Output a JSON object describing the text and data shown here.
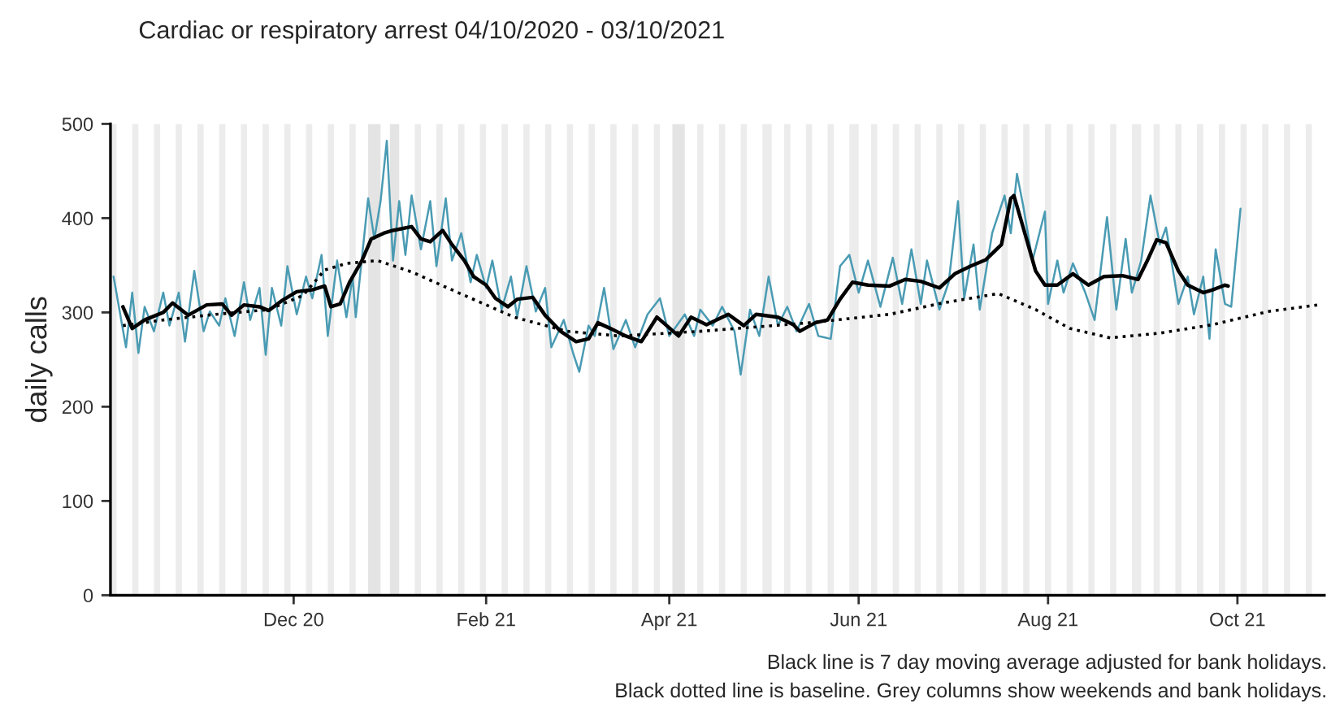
{
  "chart_data": {
    "type": "line",
    "title": "Cardiac or respiratory arrest 04/10/2020 - 03/10/2021",
    "ylabel": "daily calls",
    "annotations": [
      "Black line is 7 day moving average adjusted for bank holidays.",
      "Black dotted line is baseline. Grey columns show weekends and bank holidays."
    ],
    "xlim": [
      "2020-10-03",
      "2021-10-29"
    ],
    "xticks": [
      {
        "value": "2020-12-01",
        "label": "Dec 20"
      },
      {
        "value": "2021-02-01",
        "label": "Feb 21"
      },
      {
        "value": "2021-04-01",
        "label": "Apr 21"
      },
      {
        "value": "2021-06-01",
        "label": "Jun 21"
      },
      {
        "value": "2021-08-01",
        "label": "Aug 21"
      },
      {
        "value": "2021-10-01",
        "label": "Oct 21"
      }
    ],
    "ylim": [
      0,
      500
    ],
    "yticks": [
      0,
      100,
      200,
      300,
      400,
      500
    ],
    "grid": false,
    "legend": false,
    "series": [
      {
        "color": "#4a9bb3",
        "line_style": "solid",
        "x": [
          "2020-10-04",
          "2020-10-08",
          "2020-10-10",
          "2020-10-12",
          "2020-10-14",
          "2020-10-17",
          "2020-10-20",
          "2020-10-22",
          "2020-10-25",
          "2020-10-27",
          "2020-10-30",
          "2020-11-02",
          "2020-11-04",
          "2020-11-07",
          "2020-11-09",
          "2020-11-12",
          "2020-11-15",
          "2020-11-17",
          "2020-11-20",
          "2020-11-22",
          "2020-11-24",
          "2020-11-27",
          "2020-11-29",
          "2020-12-02",
          "2020-12-05",
          "2020-12-07",
          "2020-12-10",
          "2020-12-12",
          "2020-12-15",
          "2020-12-18",
          "2020-12-20",
          "2020-12-21",
          "2020-12-25",
          "2020-12-27",
          "2020-12-29",
          "2020-12-31",
          "2021-01-02",
          "2021-01-04",
          "2021-01-06",
          "2021-01-08",
          "2021-01-11",
          "2021-01-14",
          "2021-01-16",
          "2021-01-19",
          "2021-01-21",
          "2021-01-24",
          "2021-01-27",
          "2021-01-29",
          "2021-02-01",
          "2021-02-03",
          "2021-02-06",
          "2021-02-09",
          "2021-02-11",
          "2021-02-14",
          "2021-02-17",
          "2021-02-20",
          "2021-02-22",
          "2021-02-26",
          "2021-03-01",
          "2021-03-03",
          "2021-03-06",
          "2021-03-08",
          "2021-03-11",
          "2021-03-14",
          "2021-03-18",
          "2021-03-21",
          "2021-03-25",
          "2021-03-29",
          "2021-04-01",
          "2021-04-06",
          "2021-04-09",
          "2021-04-11",
          "2021-04-15",
          "2021-04-18",
          "2021-04-22",
          "2021-04-24",
          "2021-04-27",
          "2021-04-30",
          "2021-05-03",
          "2021-05-06",
          "2021-05-09",
          "2021-05-12",
          "2021-05-16",
          "2021-05-19",
          "2021-05-23",
          "2021-05-26",
          "2021-05-29",
          "2021-06-01",
          "2021-06-04",
          "2021-06-08",
          "2021-06-12",
          "2021-06-15",
          "2021-06-18",
          "2021-06-21",
          "2021-06-23",
          "2021-06-27",
          "2021-06-30",
          "2021-07-03",
          "2021-07-05",
          "2021-07-08",
          "2021-07-10",
          "2021-07-14",
          "2021-07-18",
          "2021-07-20",
          "2021-07-22",
          "2021-07-24",
          "2021-07-27",
          "2021-07-31",
          "2021-08-01",
          "2021-08-04",
          "2021-08-06",
          "2021-08-09",
          "2021-08-13",
          "2021-08-16",
          "2021-08-20",
          "2021-08-23",
          "2021-08-26",
          "2021-08-28",
          "2021-08-31",
          "2021-09-03",
          "2021-09-06",
          "2021-09-08",
          "2021-09-12",
          "2021-09-15",
          "2021-09-17",
          "2021-09-20",
          "2021-09-22",
          "2021-09-24",
          "2021-09-27",
          "2021-09-29",
          "2021-10-02"
        ],
        "values": [
          338,
          263,
          321,
          257,
          306,
          280,
          321,
          286,
          321,
          269,
          344,
          280,
          301,
          286,
          315,
          275,
          332,
          292,
          326,
          255,
          326,
          286,
          349,
          298,
          338,
          315,
          361,
          275,
          355,
          295,
          338,
          295,
          421,
          378,
          418,
          482,
          355,
          418,
          361,
          424,
          367,
          418,
          349,
          421,
          355,
          384,
          332,
          361,
          326,
          355,
          303,
          338,
          295,
          349,
          301,
          326,
          263,
          292,
          257,
          237,
          286,
          275,
          326,
          261,
          292,
          263,
          298,
          315,
          275,
          298,
          275,
          303,
          286,
          306,
          280,
          234,
          303,
          275,
          338,
          286,
          306,
          280,
          309,
          275,
          272,
          349,
          361,
          321,
          355,
          306,
          358,
          309,
          367,
          309,
          355,
          303,
          332,
          418,
          315,
          372,
          303,
          384,
          424,
          384,
          447,
          413,
          355,
          407,
          309,
          355,
          321,
          352,
          321,
          292,
          401,
          303,
          378,
          321,
          355,
          424,
          372,
          390,
          309,
          338,
          298,
          338,
          272,
          367,
          309,
          306,
          410
        ]
      },
      {
        "color": "#000000",
        "line_style": "solid",
        "x": [
          "2020-10-07",
          "2020-10-10",
          "2020-10-14",
          "2020-10-20",
          "2020-10-23",
          "2020-10-28",
          "2020-11-03",
          "2020-11-08",
          "2020-11-11",
          "2020-11-15",
          "2020-11-20",
          "2020-11-23",
          "2020-11-27",
          "2020-12-02",
          "2020-12-07",
          "2020-12-11",
          "2020-12-13",
          "2020-12-16",
          "2020-12-19",
          "2020-12-23",
          "2020-12-26",
          "2020-12-30",
          "2021-01-02",
          "2021-01-08",
          "2021-01-11",
          "2021-01-14",
          "2021-01-18",
          "2021-01-21",
          "2021-01-25",
          "2021-01-28",
          "2021-02-01",
          "2021-02-04",
          "2021-02-08",
          "2021-02-11",
          "2021-02-16",
          "2021-02-20",
          "2021-02-25",
          "2021-03-02",
          "2021-03-06",
          "2021-03-09",
          "2021-03-13",
          "2021-03-18",
          "2021-03-23",
          "2021-03-28",
          "2021-04-04",
          "2021-04-08",
          "2021-04-13",
          "2021-04-20",
          "2021-04-25",
          "2021-04-29",
          "2021-05-06",
          "2021-05-11",
          "2021-05-13",
          "2021-05-18",
          "2021-05-22",
          "2021-05-26",
          "2021-05-30",
          "2021-06-04",
          "2021-06-11",
          "2021-06-16",
          "2021-06-21",
          "2021-06-27",
          "2021-07-02",
          "2021-07-07",
          "2021-07-12",
          "2021-07-17",
          "2021-07-20",
          "2021-07-21",
          "2021-07-24",
          "2021-07-28",
          "2021-07-31",
          "2021-08-04",
          "2021-08-09",
          "2021-08-14",
          "2021-08-19",
          "2021-08-25",
          "2021-08-30",
          "2021-09-02",
          "2021-09-05",
          "2021-09-08",
          "2021-09-12",
          "2021-09-15",
          "2021-09-20",
          "2021-09-23",
          "2021-09-27",
          "2021-09-28"
        ],
        "values": [
          306,
          283,
          292,
          300,
          310,
          297,
          308,
          309,
          297,
          308,
          306,
          302,
          312,
          322,
          324,
          328,
          306,
          309,
          332,
          355,
          378,
          384,
          387,
          391,
          378,
          375,
          387,
          372,
          355,
          338,
          329,
          315,
          306,
          314,
          316,
          297,
          280,
          269,
          272,
          289,
          283,
          275,
          269,
          295,
          275,
          295,
          287,
          298,
          286,
          298,
          295,
          287,
          280,
          289,
          292,
          314,
          332,
          329,
          328,
          335,
          333,
          326,
          341,
          349,
          356,
          372,
          421,
          424,
          390,
          344,
          329,
          329,
          341,
          329,
          338,
          339,
          335,
          355,
          377,
          374,
          344,
          329,
          321,
          324,
          329,
          328
        ]
      },
      {
        "color": "#000000",
        "line_style": "dotted",
        "x": [
          "2020-10-07",
          "2020-10-20",
          "2020-11-06",
          "2020-11-23",
          "2020-12-04",
          "2020-12-11",
          "2020-12-18",
          "2020-12-28",
          "2021-01-08",
          "2021-01-23",
          "2021-02-10",
          "2021-02-27",
          "2021-03-16",
          "2021-04-11",
          "2021-05-16",
          "2021-06-11",
          "2021-06-28",
          "2021-07-16",
          "2021-07-28",
          "2021-08-08",
          "2021-08-21",
          "2021-09-06",
          "2021-09-23",
          "2021-10-11",
          "2021-10-27"
        ],
        "values": [
          286,
          292,
          298,
          303,
          318,
          345,
          352,
          355,
          343,
          321,
          295,
          280,
          275,
          280,
          289,
          298,
          310,
          320,
          303,
          283,
          273,
          278,
          287,
          301,
          308
        ]
      }
    ],
    "bands": [
      {
        "axis": "x",
        "from": "2020-10-03",
        "to": "2020-10-05",
        "color": "#ececec"
      },
      {
        "axis": "x",
        "from": "2020-10-10",
        "to": "2020-10-12",
        "color": "#ececec"
      },
      {
        "axis": "x",
        "from": "2020-10-17",
        "to": "2020-10-19",
        "color": "#ececec"
      },
      {
        "axis": "x",
        "from": "2020-10-24",
        "to": "2020-10-26",
        "color": "#ececec"
      },
      {
        "axis": "x",
        "from": "2020-10-31",
        "to": "2020-11-02",
        "color": "#ececec"
      },
      {
        "axis": "x",
        "from": "2020-11-07",
        "to": "2020-11-09",
        "color": "#ececec"
      },
      {
        "axis": "x",
        "from": "2020-11-14",
        "to": "2020-11-16",
        "color": "#ececec"
      },
      {
        "axis": "x",
        "from": "2020-11-21",
        "to": "2020-11-23",
        "color": "#ececec"
      },
      {
        "axis": "x",
        "from": "2020-11-28",
        "to": "2020-11-30",
        "color": "#ececec"
      },
      {
        "axis": "x",
        "from": "2020-12-05",
        "to": "2020-12-07",
        "color": "#ececec"
      },
      {
        "axis": "x",
        "from": "2020-12-12",
        "to": "2020-12-14",
        "color": "#ececec"
      },
      {
        "axis": "x",
        "from": "2020-12-19",
        "to": "2020-12-21",
        "color": "#ececec"
      },
      {
        "axis": "x",
        "from": "2020-12-25",
        "to": "2020-12-29",
        "color": "#e4e4e4"
      },
      {
        "axis": "x",
        "from": "2021-01-01",
        "to": "2021-01-04",
        "color": "#e4e4e4"
      },
      {
        "axis": "x",
        "from": "2021-01-09",
        "to": "2021-01-11",
        "color": "#ececec"
      },
      {
        "axis": "x",
        "from": "2021-01-16",
        "to": "2021-01-18",
        "color": "#ececec"
      },
      {
        "axis": "x",
        "from": "2021-01-23",
        "to": "2021-01-25",
        "color": "#ececec"
      },
      {
        "axis": "x",
        "from": "2021-01-30",
        "to": "2021-02-01",
        "color": "#ececec"
      },
      {
        "axis": "x",
        "from": "2021-02-06",
        "to": "2021-02-08",
        "color": "#ececec"
      },
      {
        "axis": "x",
        "from": "2021-02-13",
        "to": "2021-02-15",
        "color": "#ececec"
      },
      {
        "axis": "x",
        "from": "2021-02-20",
        "to": "2021-02-22",
        "color": "#ececec"
      },
      {
        "axis": "x",
        "from": "2021-02-27",
        "to": "2021-03-01",
        "color": "#ececec"
      },
      {
        "axis": "x",
        "from": "2021-03-06",
        "to": "2021-03-08",
        "color": "#ececec"
      },
      {
        "axis": "x",
        "from": "2021-03-13",
        "to": "2021-03-15",
        "color": "#ececec"
      },
      {
        "axis": "x",
        "from": "2021-03-20",
        "to": "2021-03-22",
        "color": "#ececec"
      },
      {
        "axis": "x",
        "from": "2021-03-27",
        "to": "2021-03-29",
        "color": "#ececec"
      },
      {
        "axis": "x",
        "from": "2021-04-02",
        "to": "2021-04-06",
        "color": "#e4e4e4"
      },
      {
        "axis": "x",
        "from": "2021-04-10",
        "to": "2021-04-12",
        "color": "#ececec"
      },
      {
        "axis": "x",
        "from": "2021-04-17",
        "to": "2021-04-19",
        "color": "#ececec"
      },
      {
        "axis": "x",
        "from": "2021-04-24",
        "to": "2021-04-26",
        "color": "#ececec"
      },
      {
        "axis": "x",
        "from": "2021-05-01",
        "to": "2021-05-04",
        "color": "#ececec"
      },
      {
        "axis": "x",
        "from": "2021-05-08",
        "to": "2021-05-10",
        "color": "#ececec"
      },
      {
        "axis": "x",
        "from": "2021-05-15",
        "to": "2021-05-17",
        "color": "#ececec"
      },
      {
        "axis": "x",
        "from": "2021-05-22",
        "to": "2021-05-24",
        "color": "#ececec"
      },
      {
        "axis": "x",
        "from": "2021-05-29",
        "to": "2021-06-01",
        "color": "#ececec"
      },
      {
        "axis": "x",
        "from": "2021-06-05",
        "to": "2021-06-07",
        "color": "#ececec"
      },
      {
        "axis": "x",
        "from": "2021-06-12",
        "to": "2021-06-14",
        "color": "#ececec"
      },
      {
        "axis": "x",
        "from": "2021-06-19",
        "to": "2021-06-21",
        "color": "#ececec"
      },
      {
        "axis": "x",
        "from": "2021-06-26",
        "to": "2021-06-28",
        "color": "#ececec"
      },
      {
        "axis": "x",
        "from": "2021-07-03",
        "to": "2021-07-05",
        "color": "#ececec"
      },
      {
        "axis": "x",
        "from": "2021-07-10",
        "to": "2021-07-12",
        "color": "#ececec"
      },
      {
        "axis": "x",
        "from": "2021-07-17",
        "to": "2021-07-19",
        "color": "#ececec"
      },
      {
        "axis": "x",
        "from": "2021-07-24",
        "to": "2021-07-26",
        "color": "#ececec"
      },
      {
        "axis": "x",
        "from": "2021-07-31",
        "to": "2021-08-02",
        "color": "#ececec"
      },
      {
        "axis": "x",
        "from": "2021-08-07",
        "to": "2021-08-09",
        "color": "#ececec"
      },
      {
        "axis": "x",
        "from": "2021-08-14",
        "to": "2021-08-16",
        "color": "#ececec"
      },
      {
        "axis": "x",
        "from": "2021-08-21",
        "to": "2021-08-23",
        "color": "#ececec"
      },
      {
        "axis": "x",
        "from": "2021-08-28",
        "to": "2021-08-31",
        "color": "#ececec"
      },
      {
        "axis": "x",
        "from": "2021-09-04",
        "to": "2021-09-06",
        "color": "#ececec"
      },
      {
        "axis": "x",
        "from": "2021-09-11",
        "to": "2021-09-13",
        "color": "#ececec"
      },
      {
        "axis": "x",
        "from": "2021-09-18",
        "to": "2021-09-20",
        "color": "#ececec"
      },
      {
        "axis": "x",
        "from": "2021-09-25",
        "to": "2021-09-27",
        "color": "#ececec"
      },
      {
        "axis": "x",
        "from": "2021-10-02",
        "to": "2021-10-04",
        "color": "#ececec"
      },
      {
        "axis": "x",
        "from": "2021-10-09",
        "to": "2021-10-11",
        "color": "#ececec"
      },
      {
        "axis": "x",
        "from": "2021-10-16",
        "to": "2021-10-18",
        "color": "#ececec"
      },
      {
        "axis": "x",
        "from": "2021-10-23",
        "to": "2021-10-25",
        "color": "#ececec"
      }
    ]
  }
}
